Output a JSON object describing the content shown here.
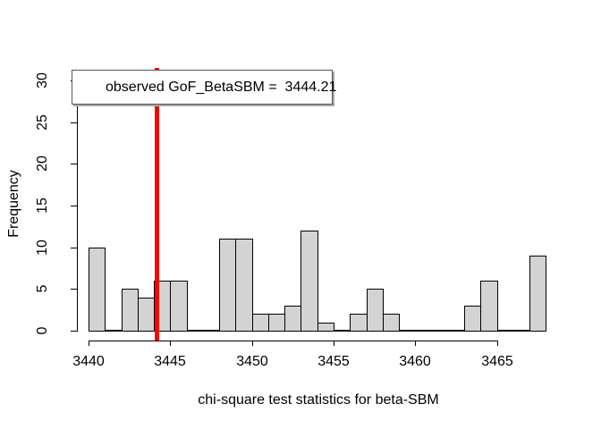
{
  "chart_data": {
    "type": "bar",
    "subtype": "histogram",
    "title": "",
    "xlabel": "chi-square test statistics for beta-SBM",
    "ylabel": "Frequency",
    "bin_start": 3440,
    "bin_width": 1,
    "counts": [
      10,
      0,
      5,
      4,
      6,
      6,
      0,
      0,
      11,
      11,
      2,
      2,
      3,
      12,
      1,
      0,
      2,
      5,
      2,
      0,
      0,
      0,
      0,
      3,
      6,
      0,
      0,
      9
    ],
    "x_ticks": [
      "3440",
      "3445",
      "3450",
      "3455",
      "3460",
      "3465"
    ],
    "y_ticks": [
      "0",
      "5",
      "10",
      "15",
      "20",
      "25",
      "30"
    ],
    "xlim": [
      3439.3,
      3469.1
    ],
    "ylim": [
      -1.2,
      31.2
    ],
    "grid": false,
    "legend": {
      "text": "observed GoF_BetaSBM =  3444.21",
      "position": "top-left"
    },
    "observed_line": {
      "value": 3444.21,
      "color": "#ff0000"
    },
    "colors": {
      "bar_fill": "#d3d3d3",
      "bar_border": "#000000",
      "axis": "#000000",
      "text": "#000000"
    }
  }
}
